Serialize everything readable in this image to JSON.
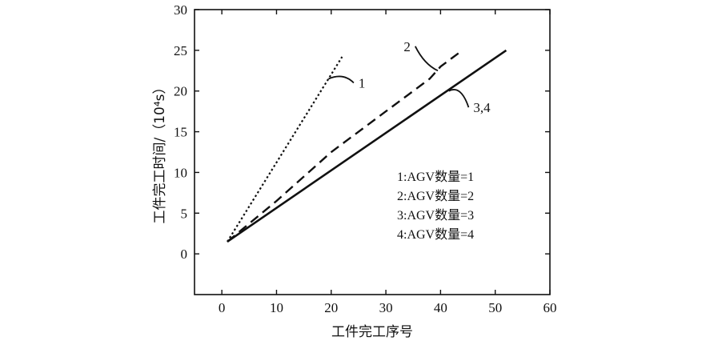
{
  "chart_data": {
    "type": "line",
    "xlabel": "工件完工序号",
    "ylabel": "工件完工时间/（10⁴s）",
    "xlim": [
      -5,
      60
    ],
    "ylim": [
      -5,
      30
    ],
    "xticks": [
      "0",
      "10",
      "20",
      "30",
      "40",
      "50",
      "60"
    ],
    "yticks": [
      "0",
      "5",
      "10",
      "15",
      "20",
      "25",
      "30"
    ],
    "grid": false,
    "series": [
      {
        "name": "1",
        "style": "dotted",
        "x": [
          1,
          22
        ],
        "y": [
          1.5,
          24.2
        ]
      },
      {
        "name": "2",
        "style": "dashed",
        "x": [
          1,
          10,
          20,
          30,
          38,
          40,
          42,
          44
        ],
        "y": [
          1.5,
          6.5,
          12.5,
          17.5,
          21.5,
          23.0,
          24.0,
          25.0
        ]
      },
      {
        "name": "3,4",
        "style": "solid",
        "x": [
          1,
          52
        ],
        "y": [
          1.5,
          25.0
        ]
      }
    ],
    "annotations": [
      {
        "text": "1",
        "target": [
          19.5,
          21.5
        ],
        "at": [
          25,
          21.0
        ]
      },
      {
        "text": "2",
        "target": [
          39.5,
          22.5
        ],
        "at": [
          34.5,
          25.5
        ]
      },
      {
        "text": "3,4",
        "target": [
          41.5,
          20.0
        ],
        "at": [
          46,
          18.0
        ]
      }
    ],
    "legend": {
      "position": "lower-right",
      "entries": [
        "1:AGV数量=1",
        "2:AGV数量=2",
        "3:AGV数量=3",
        "4:AGV数量=4"
      ]
    }
  }
}
